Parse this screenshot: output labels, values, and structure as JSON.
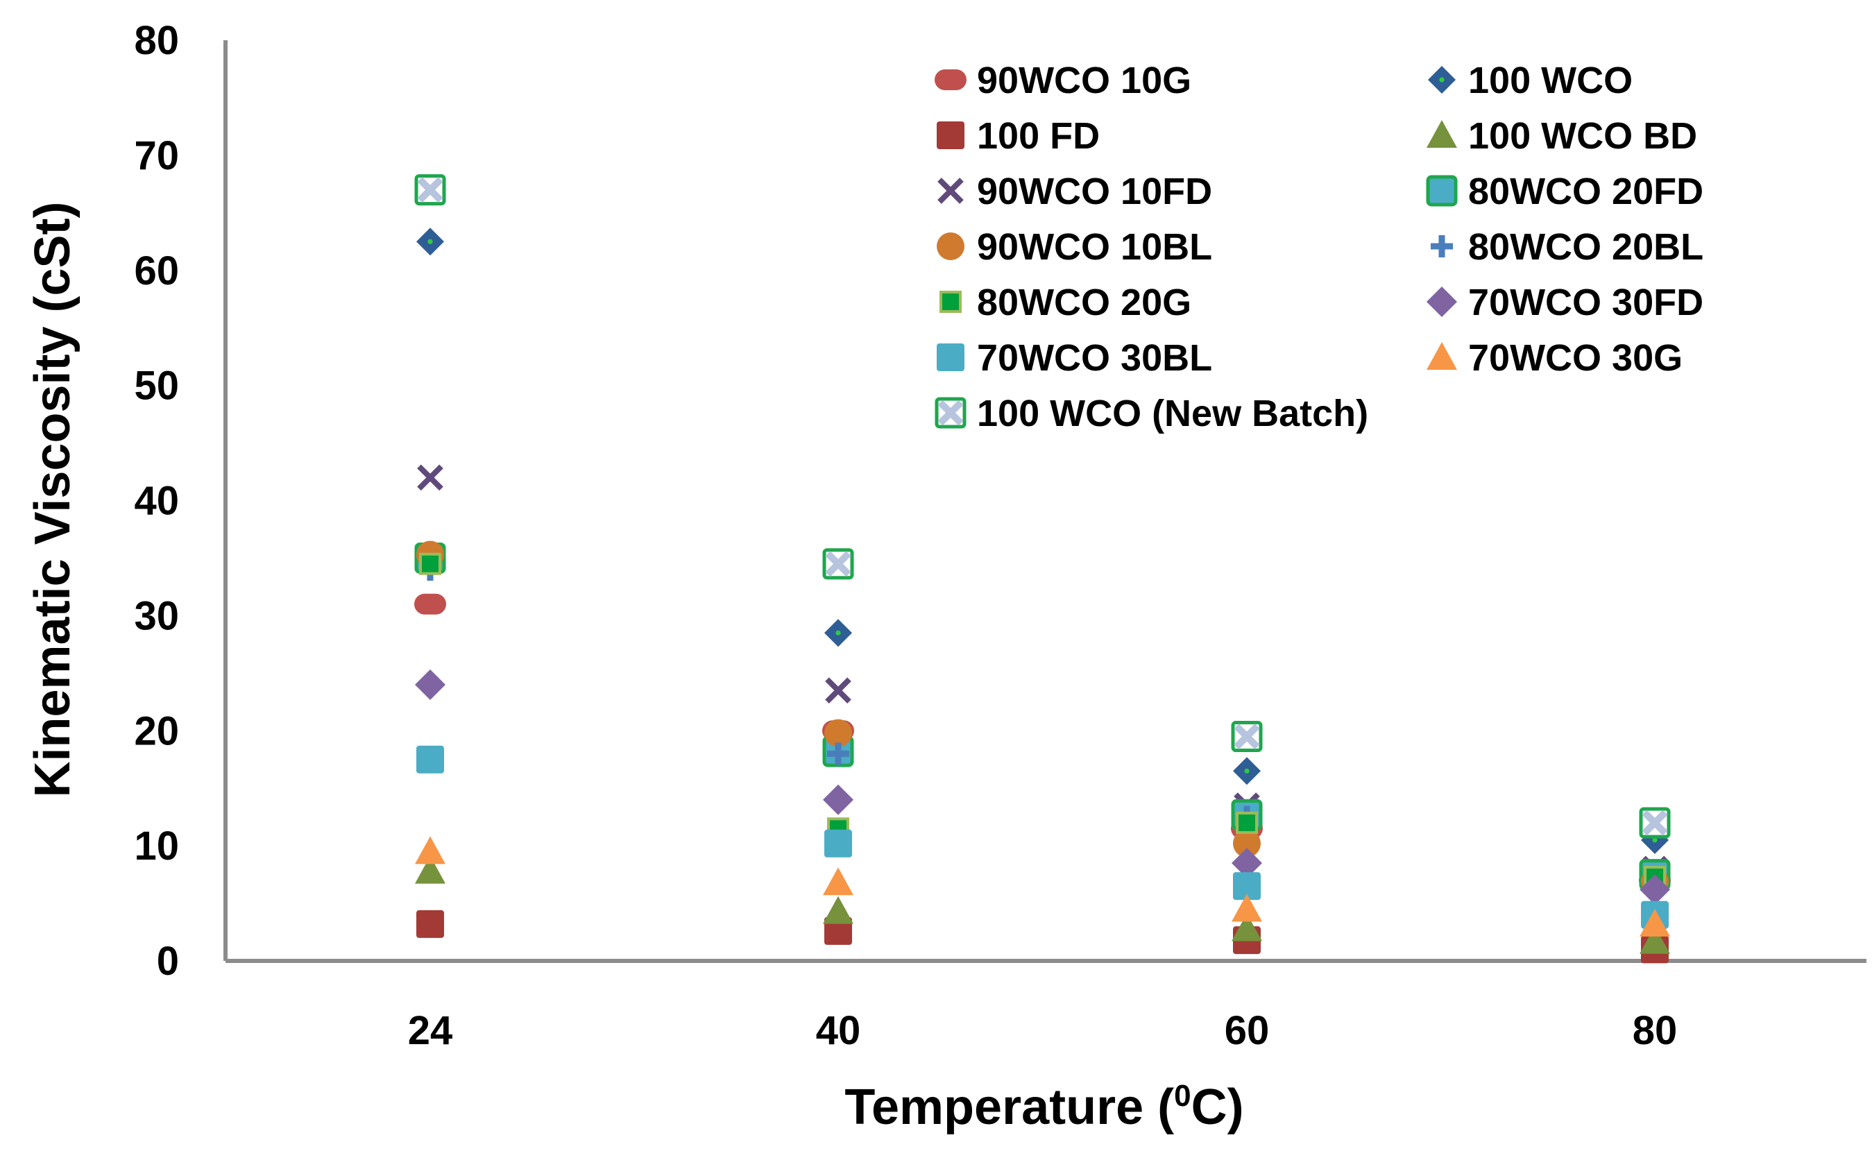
{
  "chart_data": {
    "type": "scatter",
    "title": "",
    "xlabel": "Temperature (",
    "xlabel_sup": "0",
    "xlabel_suffix": "C)",
    "ylabel": "Kinematic Viscosity (cSt)",
    "categories": [
      "24",
      "40",
      "60",
      "80"
    ],
    "ylim": [
      0,
      80
    ],
    "yticks": [
      "0",
      "10",
      "20",
      "30",
      "40",
      "50",
      "60",
      "70",
      "80"
    ],
    "grid": false,
    "legend_position": "top-right",
    "series": [
      {
        "name": "90WCO 10G",
        "marker": "rounded-rect",
        "color": "#C0504D",
        "values": [
          31,
          20,
          11.5,
          7
        ]
      },
      {
        "name": "100 WCO",
        "marker": "diamond-dot",
        "color": "#2E5E95",
        "values": [
          62.5,
          28.5,
          16.5,
          10.5
        ]
      },
      {
        "name": "100 FD",
        "marker": "square",
        "color": "#A33A35",
        "values": [
          3.2,
          2.6,
          1.8,
          1
        ]
      },
      {
        "name": "100 WCO BD",
        "marker": "triangle",
        "color": "#76923C",
        "values": [
          7.8,
          4.3,
          2.8,
          1.7
        ]
      },
      {
        "name": "90WCO 10FD",
        "marker": "x",
        "color": "#604A7B",
        "values": [
          42,
          23.5,
          13.5,
          8
        ]
      },
      {
        "name": "80WCO 20FD",
        "marker": "square-outline",
        "color": "#4BACC6",
        "stroke": "#1FA64D",
        "values": [
          35,
          18.2,
          12.7,
          7.5
        ]
      },
      {
        "name": "90WCO 10BL",
        "marker": "circle",
        "color": "#D07A2E",
        "values": [
          35.3,
          19.8,
          10.2,
          6.9
        ]
      },
      {
        "name": "80WCO 20BL",
        "marker": "plus",
        "color": "#4A7EBB",
        "values": [
          34,
          18,
          12.5,
          7.2
        ]
      },
      {
        "name": "80WCO 20G",
        "marker": "small-square",
        "color": "#00A03C",
        "stroke": "#9BBB59",
        "values": [
          34.5,
          11.5,
          12,
          7.3
        ]
      },
      {
        "name": "70WCO 30FD",
        "marker": "diamond",
        "color": "#8064A2",
        "values": [
          24,
          14,
          8.5,
          6.2
        ]
      },
      {
        "name": "70WCO 30BL",
        "marker": "square",
        "color": "#4BACC6",
        "values": [
          17.5,
          10.2,
          6.5,
          4
        ]
      },
      {
        "name": "70WCO 30G",
        "marker": "triangle",
        "color": "#F79646",
        "values": [
          9.5,
          6.8,
          4.5,
          3.2
        ]
      },
      {
        "name": "100 WCO (New Batch)",
        "marker": "box-x",
        "color": "#B7C4DE",
        "stroke": "#1FA64D",
        "values": [
          67,
          34.5,
          19.5,
          12
        ]
      }
    ]
  }
}
